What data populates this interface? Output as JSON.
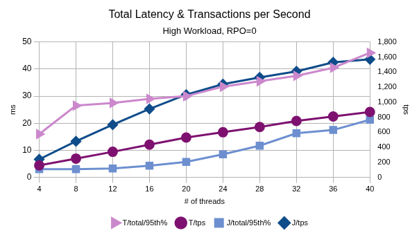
{
  "chart_data": {
    "type": "line",
    "title": "Total Latency & Transactions per Second",
    "subtitle": "High Workload, RPO=0",
    "x_label": "# of threads",
    "y_label": "ms",
    "y2_label": "tps",
    "categories": [
      "4",
      "8",
      "12",
      "16",
      "20",
      "24",
      "28",
      "32",
      "36",
      "40"
    ],
    "ylim": [
      0,
      50
    ],
    "yticks": [
      0,
      10,
      20,
      30,
      40,
      50
    ],
    "y2lim": [
      0,
      1800
    ],
    "y2ticks": [
      0,
      200,
      400,
      600,
      800,
      1000,
      1200,
      1400,
      1600,
      1800
    ],
    "grid": true,
    "legend": "bottom",
    "series": [
      {
        "name": "T/total/95th%",
        "color": "#cc88cc",
        "marker": "triangle",
        "axis": "y",
        "values": [
          16,
          26.5,
          27.5,
          29,
          30,
          33.5,
          35.5,
          37.5,
          40.5,
          46
        ]
      },
      {
        "name": "T/tps",
        "color": "#7e1170",
        "marker": "circle",
        "axis": "y2",
        "values": [
          160,
          250,
          340,
          435,
          530,
          600,
          670,
          750,
          810,
          870
        ]
      },
      {
        "name": "J/total/95th%",
        "color": "#6d8fd0",
        "marker": "square",
        "axis": "y",
        "values": [
          3,
          3,
          3.3,
          4.3,
          5.7,
          8.5,
          11.7,
          16.3,
          17.5,
          21.3
        ]
      },
      {
        "name": "J/tps",
        "color": "#0f4c8a",
        "marker": "diamond",
        "axis": "y2",
        "values": [
          240,
          480,
          700,
          910,
          1100,
          1240,
          1330,
          1410,
          1530,
          1570
        ]
      }
    ]
  }
}
